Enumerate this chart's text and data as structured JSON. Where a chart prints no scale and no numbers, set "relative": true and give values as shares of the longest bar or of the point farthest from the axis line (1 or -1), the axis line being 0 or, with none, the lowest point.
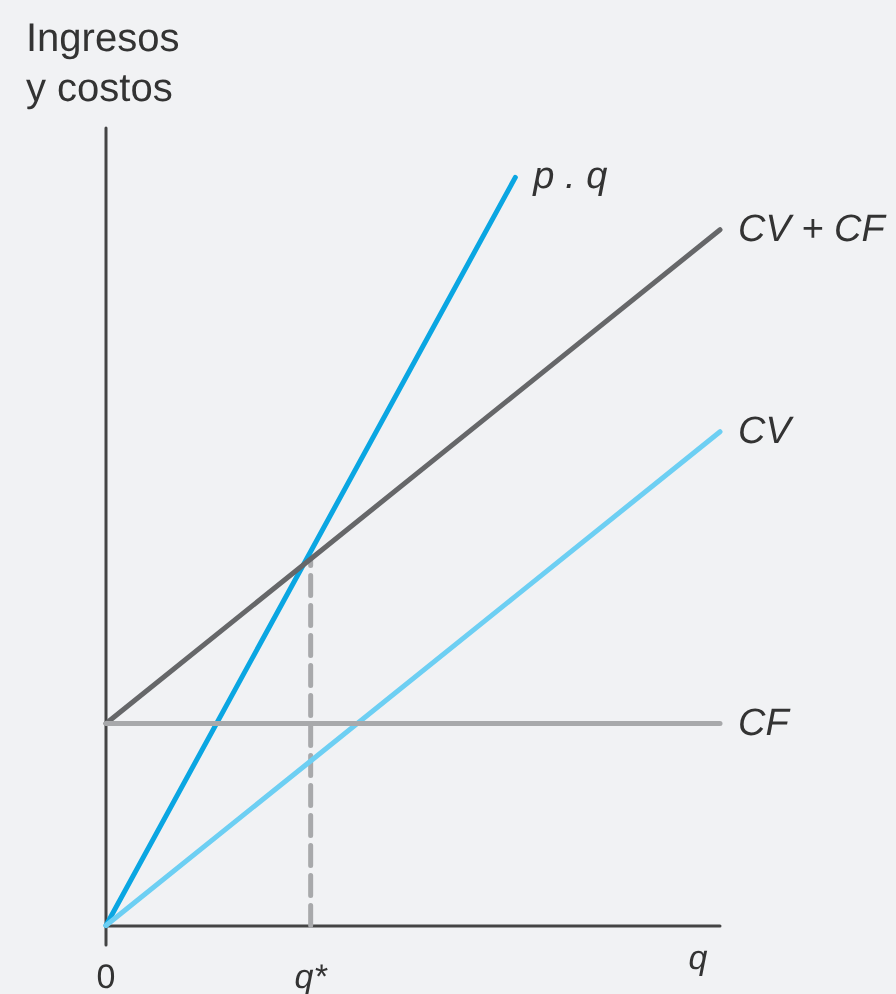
{
  "chart_data": {
    "type": "line",
    "relative": true,
    "xlabel": "q",
    "ylabel": "Ingresos y costos",
    "categories": [
      "0",
      "q*",
      null,
      null
    ],
    "tick_labels": "x",
    "marker": "none",
    "series": [
      {
        "name": "p . q",
        "color": "#0aa6e2",
        "values": [
          0,
          0.5,
          1,
          null
        ]
      },
      {
        "name": "CV + CF",
        "color": "#666769",
        "values": [
          0.27,
          0.49,
          0.71,
          0.93
        ]
      },
      {
        "name": "CV",
        "color": "#6dcff3",
        "values": [
          0,
          0.22,
          0.44,
          0.66
        ]
      },
      {
        "name": "CF",
        "color": "#a8a9ab",
        "values": [
          0.27,
          0.27,
          0.27,
          0.27
        ]
      },
      {
        "color": "#a8a9ab",
        "line_style": "dashed",
        "x": [
          "q*",
          "q*"
        ],
        "values": [
          0,
          0.49
        ]
      }
    ]
  }
}
